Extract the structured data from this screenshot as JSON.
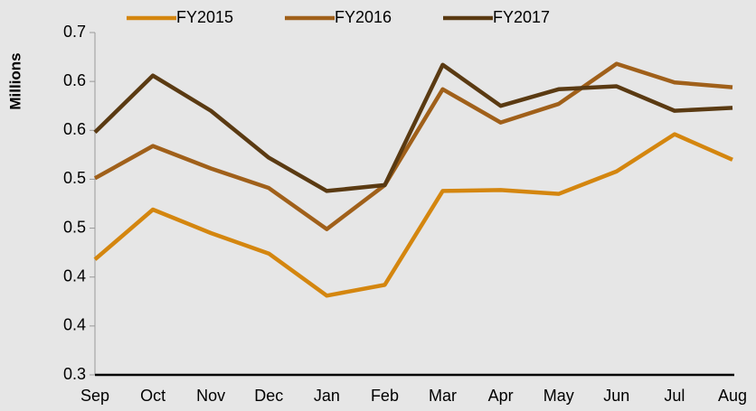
{
  "chart_data": {
    "type": "line",
    "y_label": "Millions",
    "categories": [
      "Sep",
      "Oct",
      "Nov",
      "Dec",
      "Jan",
      "Feb",
      "Mar",
      "Apr",
      "May",
      "Jun",
      "Jul",
      "Aug"
    ],
    "series": [
      {
        "name": "FY2015",
        "color": "#d4860f",
        "values": [
          0.418,
          0.469,
          0.445,
          0.424,
          0.381,
          0.392,
          0.488,
          0.489,
          0.485,
          0.508,
          0.546,
          0.52
        ]
      },
      {
        "name": "FY2016",
        "color": "#a0601a",
        "values": [
          0.501,
          0.534,
          0.511,
          0.491,
          0.449,
          0.494,
          0.592,
          0.558,
          0.577,
          0.618,
          0.599,
          0.594
        ]
      },
      {
        "name": "FY2017",
        "color": "#5a3a12",
        "values": [
          0.548,
          0.606,
          0.57,
          0.522,
          0.488,
          0.494,
          0.617,
          0.575,
          0.592,
          0.595,
          0.57,
          0.573
        ]
      }
    ],
    "ylim": [
      0.3,
      0.65
    ],
    "yticks": [
      0.3,
      {
        "value": 0.35,
        "label": "0.4"
      },
      0.4,
      {
        "value": 0.45,
        "label": "0.5"
      },
      0.5,
      {
        "value": 0.55,
        "label": "0.6"
      },
      0.6,
      {
        "value": 0.65,
        "label": "0.7"
      }
    ],
    "legend": "top"
  }
}
